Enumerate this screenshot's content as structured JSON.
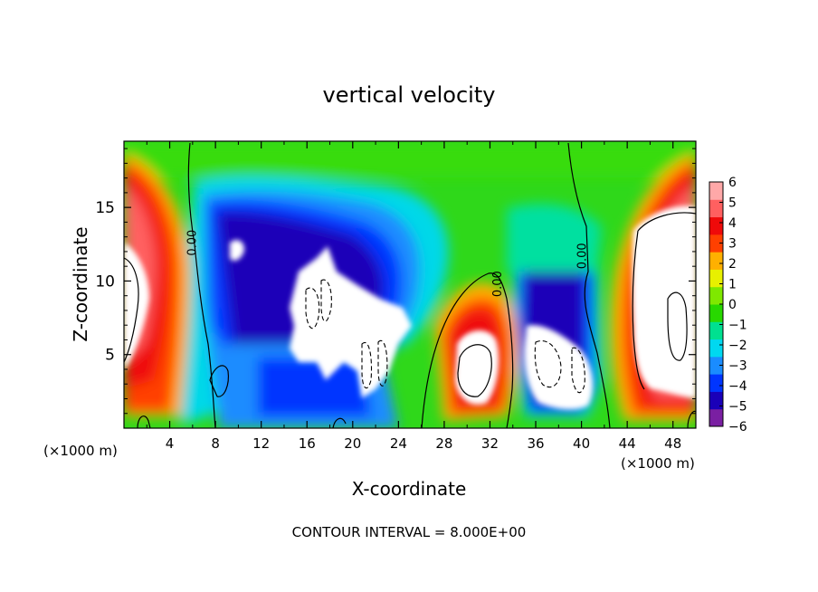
{
  "chart_data": {
    "type": "heatmap",
    "title": "vertical velocity",
    "xlabel": "X-coordinate",
    "ylabel": "Z-coordinate",
    "x_unit_left": "(×1000 m)",
    "x_unit_right": "(×1000 m)",
    "footer": "CONTOUR INTERVAL = 8.000E+00",
    "xlim": [
      0,
      50
    ],
    "ylim": [
      0,
      19.5
    ],
    "x_ticks": [
      4,
      8,
      12,
      16,
      20,
      24,
      28,
      32,
      36,
      40,
      44,
      48
    ],
    "x_tick_labels": [
      "4",
      "8",
      "12",
      "16",
      "20",
      "24",
      "28",
      "32",
      "36",
      "40",
      "44",
      "48"
    ],
    "y_ticks": [
      5,
      10,
      15
    ],
    "y_tick_labels": [
      "5",
      "10",
      "15"
    ],
    "colorbar": {
      "ticks": [
        6,
        5,
        4,
        3,
        2,
        1,
        0,
        -1,
        -2,
        -3,
        -4,
        -5,
        -6
      ],
      "tick_labels": [
        "6",
        "5",
        "4",
        "3",
        "2",
        "1",
        "0",
        "−1",
        "−2",
        "−3",
        "−4",
        "−5",
        "−6"
      ],
      "range": [
        -6,
        6
      ],
      "colors": [
        "#7a1fa2",
        "#1a00b8",
        "#0035ff",
        "#1a8cff",
        "#00d8f0",
        "#00e090",
        "#28d800",
        "#7fe800",
        "#e8f000",
        "#ffb000",
        "#ff4000",
        "#ef0a0a",
        "#ff6060",
        "#ffa8a8"
      ]
    },
    "contour_labels": [
      {
        "text": "0.00",
        "x": 6.3,
        "z": 12.6
      },
      {
        "text": "0.00",
        "x": 33.0,
        "z": 9.8
      },
      {
        "text": "0.00",
        "x": 40.4,
        "z": 11.7
      }
    ],
    "features": [
      {
        "kind": "updraft",
        "x": 2.5,
        "z": 10,
        "max_exceeds": 6
      },
      {
        "kind": "updraft",
        "x": 31,
        "z": 5,
        "max_exceeds": 6
      },
      {
        "kind": "updraft",
        "x": 46.5,
        "z": 10,
        "max_exceeds": 6
      },
      {
        "kind": "downdraft",
        "x": 20,
        "z": 7.5,
        "min_below": -6
      },
      {
        "kind": "downdraft",
        "x": 38.5,
        "z": 4.5,
        "min_below": -6
      },
      {
        "kind": "downdraft",
        "x": 10,
        "z": 12,
        "min_below": -6
      }
    ]
  }
}
